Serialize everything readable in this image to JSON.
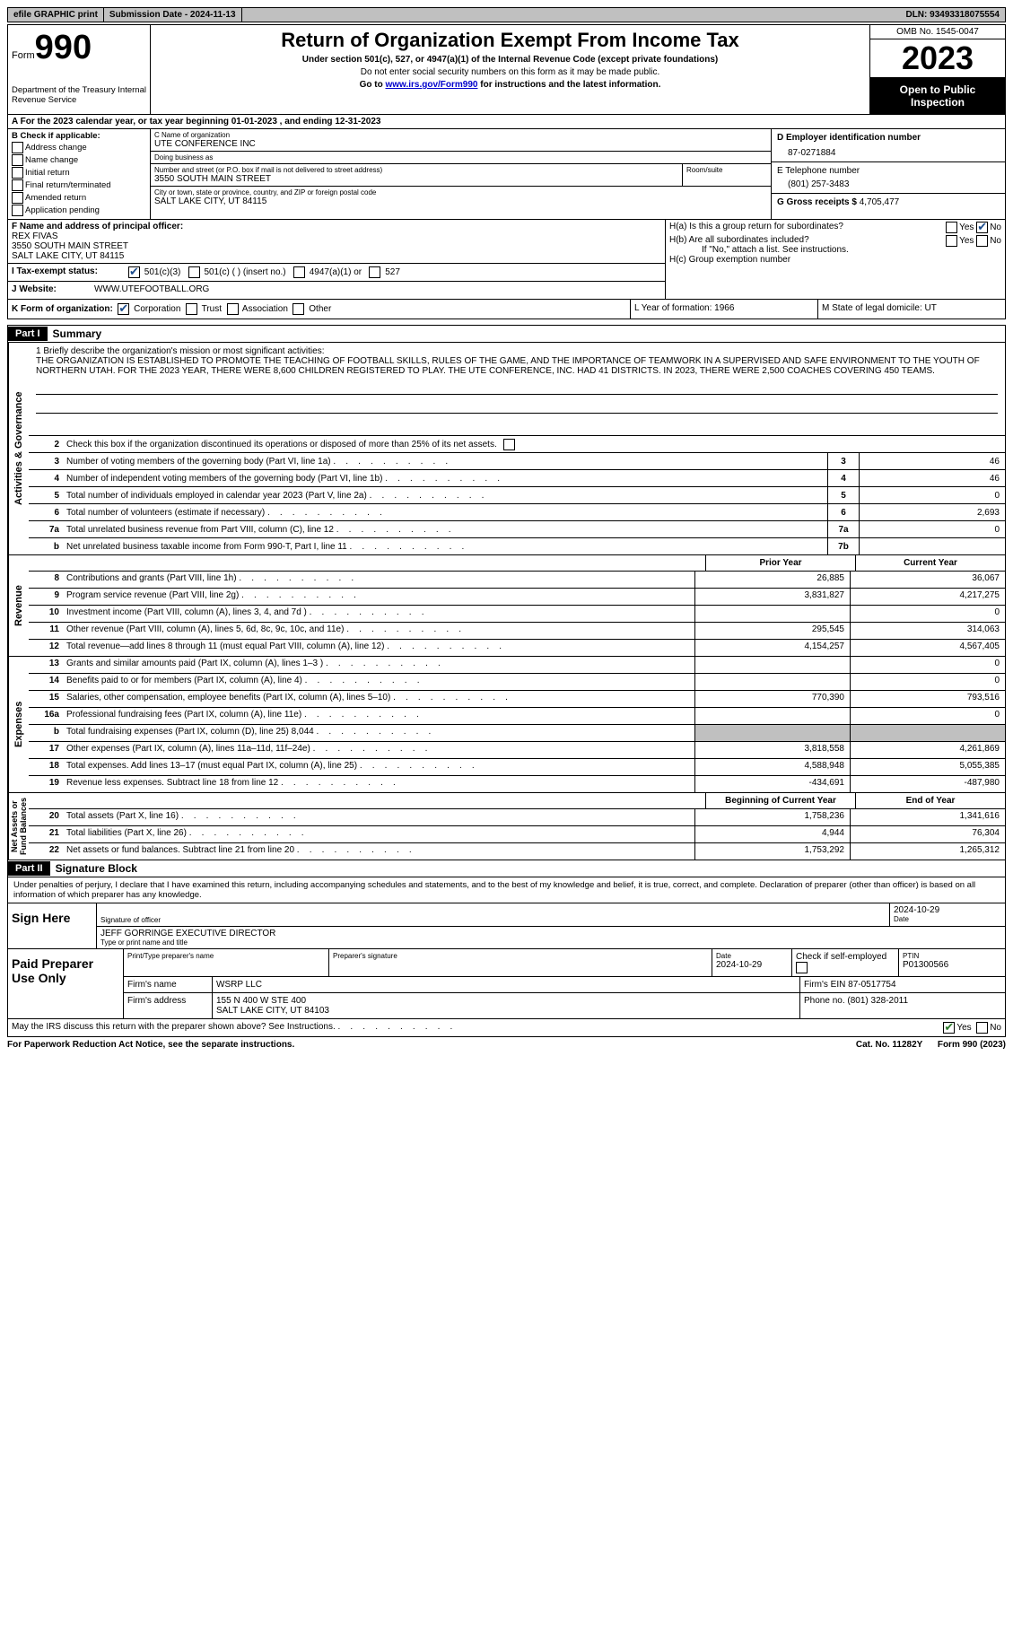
{
  "topbar": {
    "efile": "efile GRAPHIC print",
    "submission": "Submission Date - 2024-11-13",
    "dln": "DLN: 93493318075554"
  },
  "header": {
    "form_prefix": "Form",
    "form_num": "990",
    "dept": "Department of the Treasury\nInternal Revenue Service",
    "title": "Return of Organization Exempt From Income Tax",
    "sub1": "Under section 501(c), 527, or 4947(a)(1) of the Internal Revenue Code (except private foundations)",
    "sub2": "Do not enter social security numbers on this form as it may be made public.",
    "sub3_pre": "Go to ",
    "sub3_link": "www.irs.gov/Form990",
    "sub3_post": " for instructions and the latest information.",
    "omb": "OMB No. 1545-0047",
    "year": "2023",
    "pub": "Open to Public Inspection"
  },
  "rowA": "A  For the 2023 calendar year, or tax year beginning 01-01-2023    , and ending 12-31-2023",
  "colB": {
    "title": "B Check if applicable:",
    "items": [
      "Address change",
      "Name change",
      "Initial return",
      "Final return/terminated",
      "Amended return",
      "Application pending"
    ]
  },
  "colC": {
    "name_lbl": "C Name of organization",
    "name": "UTE CONFERENCE INC",
    "dba_lbl": "Doing business as",
    "dba": "",
    "street_lbl": "Number and street (or P.O. box if mail is not delivered to street address)",
    "street": "3550 SOUTH MAIN STREET",
    "room_lbl": "Room/suite",
    "city_lbl": "City or town, state or province, country, and ZIP or foreign postal code",
    "city": "SALT LAKE CITY, UT  84115"
  },
  "colD": {
    "ein_lbl": "D Employer identification number",
    "ein": "87-0271884",
    "tel_lbl": "E Telephone number",
    "tel": "(801) 257-3483",
    "gross_lbl": "G Gross receipts $",
    "gross": "4,705,477"
  },
  "colF": {
    "lbl": "F Name and address of principal officer:",
    "name": "REX FIVAS",
    "addr1": "3550 SOUTH MAIN STREET",
    "addr2": "SALT LAKE CITY, UT  84115"
  },
  "colH": {
    "ha": "H(a)  Is this a group return for subordinates?",
    "hb": "H(b)  Are all subordinates included?",
    "hb_note": "If \"No,\" attach a list. See instructions.",
    "hc": "H(c)  Group exemption number"
  },
  "taxStatus": {
    "lbl": "I   Tax-exempt status:",
    "opts": [
      "501(c)(3)",
      "501(c) (  ) (insert no.)",
      "4947(a)(1) or",
      "527"
    ]
  },
  "website": {
    "lbl": "J   Website:",
    "val": "WWW.UTEFOOTBALL.ORG"
  },
  "formOrg": {
    "k_lbl": "K Form of organization:",
    "k_opts": [
      "Corporation",
      "Trust",
      "Association",
      "Other"
    ],
    "l": "L Year of formation: 1966",
    "m": "M State of legal domicile: UT"
  },
  "part1": {
    "header": "Part I",
    "title": "Summary",
    "mission_lbl": "1   Briefly describe the organization's mission or most significant activities:",
    "mission": "THE ORGANIZATION IS ESTABLISHED TO PROMOTE THE TEACHING OF FOOTBALL SKILLS, RULES OF THE GAME, AND THE IMPORTANCE OF TEAMWORK IN A SUPERVISED AND SAFE ENVIRONMENT TO THE YOUTH OF NORTHERN UTAH. FOR THE 2023 YEAR, THERE WERE 8,600 CHILDREN REGISTERED TO PLAY. THE UTE CONFERENCE, INC. HAD 41 DISTRICTS. IN 2023, THERE WERE 2,500 COACHES COVERING 450 TEAMS.",
    "line2": "Check this box        if the organization discontinued its operations or disposed of more than 25% of its net assets.",
    "lines_gov": [
      {
        "n": "3",
        "t": "Number of voting members of the governing body (Part VI, line 1a)",
        "b": "3",
        "v": "46"
      },
      {
        "n": "4",
        "t": "Number of independent voting members of the governing body (Part VI, line 1b)",
        "b": "4",
        "v": "46"
      },
      {
        "n": "5",
        "t": "Total number of individuals employed in calendar year 2023 (Part V, line 2a)",
        "b": "5",
        "v": "0"
      },
      {
        "n": "6",
        "t": "Total number of volunteers (estimate if necessary)",
        "b": "6",
        "v": "2,693"
      },
      {
        "n": "7a",
        "t": "Total unrelated business revenue from Part VIII, column (C), line 12",
        "b": "7a",
        "v": "0"
      },
      {
        "n": "b",
        "t": "Net unrelated business taxable income from Form 990-T, Part I, line 11",
        "b": "7b",
        "v": ""
      }
    ],
    "col_prior": "Prior Year",
    "col_current": "Current Year",
    "revenue": [
      {
        "n": "8",
        "t": "Contributions and grants (Part VIII, line 1h)",
        "p": "26,885",
        "c": "36,067"
      },
      {
        "n": "9",
        "t": "Program service revenue (Part VIII, line 2g)",
        "p": "3,831,827",
        "c": "4,217,275"
      },
      {
        "n": "10",
        "t": "Investment income (Part VIII, column (A), lines 3, 4, and 7d )",
        "p": "",
        "c": "0"
      },
      {
        "n": "11",
        "t": "Other revenue (Part VIII, column (A), lines 5, 6d, 8c, 9c, 10c, and 11e)",
        "p": "295,545",
        "c": "314,063"
      },
      {
        "n": "12",
        "t": "Total revenue—add lines 8 through 11 (must equal Part VIII, column (A), line 12)",
        "p": "4,154,257",
        "c": "4,567,405"
      }
    ],
    "expenses": [
      {
        "n": "13",
        "t": "Grants and similar amounts paid (Part IX, column (A), lines 1–3 )",
        "p": "",
        "c": "0"
      },
      {
        "n": "14",
        "t": "Benefits paid to or for members (Part IX, column (A), line 4)",
        "p": "",
        "c": "0"
      },
      {
        "n": "15",
        "t": "Salaries, other compensation, employee benefits (Part IX, column (A), lines 5–10)",
        "p": "770,390",
        "c": "793,516"
      },
      {
        "n": "16a",
        "t": "Professional fundraising fees (Part IX, column (A), line 11e)",
        "p": "",
        "c": "0"
      },
      {
        "n": "b",
        "t": "Total fundraising expenses (Part IX, column (D), line 25) 8,044",
        "p": "grey",
        "c": "grey"
      },
      {
        "n": "17",
        "t": "Other expenses (Part IX, column (A), lines 11a–11d, 11f–24e)",
        "p": "3,818,558",
        "c": "4,261,869"
      },
      {
        "n": "18",
        "t": "Total expenses. Add lines 13–17 (must equal Part IX, column (A), line 25)",
        "p": "4,588,948",
        "c": "5,055,385"
      },
      {
        "n": "19",
        "t": "Revenue less expenses. Subtract line 18 from line 12",
        "p": "-434,691",
        "c": "-487,980"
      }
    ],
    "col_begin": "Beginning of Current Year",
    "col_end": "End of Year",
    "netassets": [
      {
        "n": "20",
        "t": "Total assets (Part X, line 16)",
        "p": "1,758,236",
        "c": "1,341,616"
      },
      {
        "n": "21",
        "t": "Total liabilities (Part X, line 26)",
        "p": "4,944",
        "c": "76,304"
      },
      {
        "n": "22",
        "t": "Net assets or fund balances. Subtract line 21 from line 20",
        "p": "1,753,292",
        "c": "1,265,312"
      }
    ]
  },
  "part2": {
    "header": "Part II",
    "title": "Signature Block",
    "declare": "Under penalties of perjury, I declare that I have examined this return, including accompanying schedules and statements, and to the best of my knowledge and belief, it is true, correct, and complete. Declaration of preparer (other than officer) is based on all information of which preparer has any knowledge.",
    "sign_here": "Sign Here",
    "sig_date": "2024-10-29",
    "sig_officer_lbl": "Signature of officer",
    "sig_date_lbl": "Date",
    "officer": "JEFF GORRINGE  EXECUTIVE DIRECTOR",
    "officer_lbl": "Type or print name and title",
    "paid_prep": "Paid Preparer Use Only",
    "prep_name_lbl": "Print/Type preparer's name",
    "prep_sig_lbl": "Preparer's signature",
    "prep_date_lbl": "Date",
    "prep_date": "2024-10-29",
    "prep_check_lbl": "Check      if self-employed",
    "ptin_lbl": "PTIN",
    "ptin": "P01300566",
    "firm_name_lbl": "Firm's name",
    "firm_name": "WSRP LLC",
    "firm_ein_lbl": "Firm's EIN",
    "firm_ein": "87-0517754",
    "firm_addr_lbl": "Firm's address",
    "firm_addr1": "155 N 400 W STE 400",
    "firm_addr2": "SALT LAKE CITY, UT  84103",
    "phone_lbl": "Phone no.",
    "phone": "(801) 328-2011",
    "irs_discuss": "May the IRS discuss this return with the preparer shown above? See Instructions."
  },
  "footer": {
    "paperwork": "For Paperwork Reduction Act Notice, see the separate instructions.",
    "cat": "Cat. No. 11282Y",
    "form": "Form 990 (2023)"
  }
}
